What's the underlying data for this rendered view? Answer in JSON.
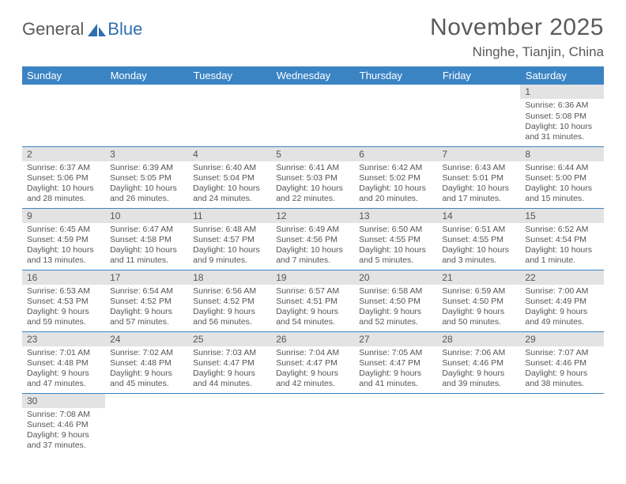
{
  "logo": {
    "text1": "General",
    "text2": "Blue"
  },
  "title": "November 2025",
  "location": "Ninghe, Tianjin, China",
  "colors": {
    "header_bg": "#3b84c4",
    "header_text": "#ffffff",
    "daybar_bg": "#e3e3e3",
    "border": "#3b84c4",
    "text": "#555555",
    "logo_gray": "#5a5a5a",
    "logo_blue": "#2f6fb0"
  },
  "day_names": [
    "Sunday",
    "Monday",
    "Tuesday",
    "Wednesday",
    "Thursday",
    "Friday",
    "Saturday"
  ],
  "weeks": [
    [
      null,
      null,
      null,
      null,
      null,
      null,
      {
        "n": "1",
        "sr": "6:36 AM",
        "ss": "5:08 PM",
        "dl": "10 hours and 31 minutes."
      }
    ],
    [
      {
        "n": "2",
        "sr": "6:37 AM",
        "ss": "5:06 PM",
        "dl": "10 hours and 28 minutes."
      },
      {
        "n": "3",
        "sr": "6:39 AM",
        "ss": "5:05 PM",
        "dl": "10 hours and 26 minutes."
      },
      {
        "n": "4",
        "sr": "6:40 AM",
        "ss": "5:04 PM",
        "dl": "10 hours and 24 minutes."
      },
      {
        "n": "5",
        "sr": "6:41 AM",
        "ss": "5:03 PM",
        "dl": "10 hours and 22 minutes."
      },
      {
        "n": "6",
        "sr": "6:42 AM",
        "ss": "5:02 PM",
        "dl": "10 hours and 20 minutes."
      },
      {
        "n": "7",
        "sr": "6:43 AM",
        "ss": "5:01 PM",
        "dl": "10 hours and 17 minutes."
      },
      {
        "n": "8",
        "sr": "6:44 AM",
        "ss": "5:00 PM",
        "dl": "10 hours and 15 minutes."
      }
    ],
    [
      {
        "n": "9",
        "sr": "6:45 AM",
        "ss": "4:59 PM",
        "dl": "10 hours and 13 minutes."
      },
      {
        "n": "10",
        "sr": "6:47 AM",
        "ss": "4:58 PM",
        "dl": "10 hours and 11 minutes."
      },
      {
        "n": "11",
        "sr": "6:48 AM",
        "ss": "4:57 PM",
        "dl": "10 hours and 9 minutes."
      },
      {
        "n": "12",
        "sr": "6:49 AM",
        "ss": "4:56 PM",
        "dl": "10 hours and 7 minutes."
      },
      {
        "n": "13",
        "sr": "6:50 AM",
        "ss": "4:55 PM",
        "dl": "10 hours and 5 minutes."
      },
      {
        "n": "14",
        "sr": "6:51 AM",
        "ss": "4:55 PM",
        "dl": "10 hours and 3 minutes."
      },
      {
        "n": "15",
        "sr": "6:52 AM",
        "ss": "4:54 PM",
        "dl": "10 hours and 1 minute."
      }
    ],
    [
      {
        "n": "16",
        "sr": "6:53 AM",
        "ss": "4:53 PM",
        "dl": "9 hours and 59 minutes."
      },
      {
        "n": "17",
        "sr": "6:54 AM",
        "ss": "4:52 PM",
        "dl": "9 hours and 57 minutes."
      },
      {
        "n": "18",
        "sr": "6:56 AM",
        "ss": "4:52 PM",
        "dl": "9 hours and 56 minutes."
      },
      {
        "n": "19",
        "sr": "6:57 AM",
        "ss": "4:51 PM",
        "dl": "9 hours and 54 minutes."
      },
      {
        "n": "20",
        "sr": "6:58 AM",
        "ss": "4:50 PM",
        "dl": "9 hours and 52 minutes."
      },
      {
        "n": "21",
        "sr": "6:59 AM",
        "ss": "4:50 PM",
        "dl": "9 hours and 50 minutes."
      },
      {
        "n": "22",
        "sr": "7:00 AM",
        "ss": "4:49 PM",
        "dl": "9 hours and 49 minutes."
      }
    ],
    [
      {
        "n": "23",
        "sr": "7:01 AM",
        "ss": "4:48 PM",
        "dl": "9 hours and 47 minutes."
      },
      {
        "n": "24",
        "sr": "7:02 AM",
        "ss": "4:48 PM",
        "dl": "9 hours and 45 minutes."
      },
      {
        "n": "25",
        "sr": "7:03 AM",
        "ss": "4:47 PM",
        "dl": "9 hours and 44 minutes."
      },
      {
        "n": "26",
        "sr": "7:04 AM",
        "ss": "4:47 PM",
        "dl": "9 hours and 42 minutes."
      },
      {
        "n": "27",
        "sr": "7:05 AM",
        "ss": "4:47 PM",
        "dl": "9 hours and 41 minutes."
      },
      {
        "n": "28",
        "sr": "7:06 AM",
        "ss": "4:46 PM",
        "dl": "9 hours and 39 minutes."
      },
      {
        "n": "29",
        "sr": "7:07 AM",
        "ss": "4:46 PM",
        "dl": "9 hours and 38 minutes."
      }
    ],
    [
      {
        "n": "30",
        "sr": "7:08 AM",
        "ss": "4:46 PM",
        "dl": "9 hours and 37 minutes."
      },
      null,
      null,
      null,
      null,
      null,
      null
    ]
  ],
  "labels": {
    "sunrise": "Sunrise:",
    "sunset": "Sunset:",
    "daylight": "Daylight:"
  }
}
